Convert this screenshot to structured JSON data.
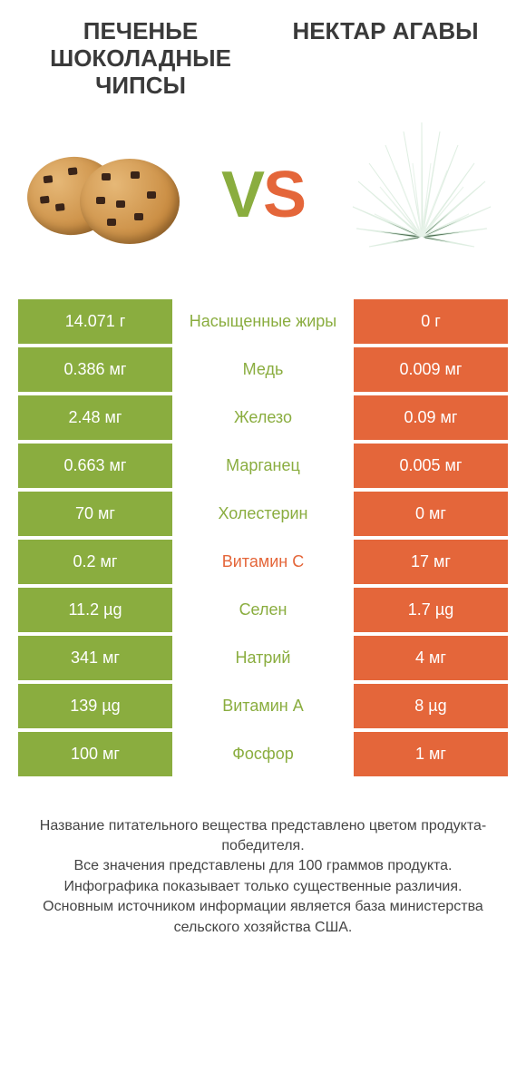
{
  "colors": {
    "left_cell": "#8aad3f",
    "right_cell": "#e4663a",
    "left_text": "#8aad3f",
    "right_text": "#e4663a",
    "background": "#ffffff"
  },
  "header": {
    "left_title": "ПЕЧЕНЬЕ ШОКОЛАДНЫЕ ЧИПСЫ",
    "right_title": "НЕКТАР АГАВЫ"
  },
  "vs": {
    "v": "V",
    "s": "S"
  },
  "rows": [
    {
      "left": "14.071 г",
      "label": "Насыщенные жиры",
      "right": "0 г",
      "winner": "left"
    },
    {
      "left": "0.386 мг",
      "label": "Медь",
      "right": "0.009 мг",
      "winner": "left"
    },
    {
      "left": "2.48 мг",
      "label": "Железо",
      "right": "0.09 мг",
      "winner": "left"
    },
    {
      "left": "0.663 мг",
      "label": "Марганец",
      "right": "0.005 мг",
      "winner": "left"
    },
    {
      "left": "70 мг",
      "label": "Холестерин",
      "right": "0 мг",
      "winner": "left"
    },
    {
      "left": "0.2 мг",
      "label": "Витамин C",
      "right": "17 мг",
      "winner": "right"
    },
    {
      "left": "11.2 µg",
      "label": "Селен",
      "right": "1.7 µg",
      "winner": "left"
    },
    {
      "left": "341 мг",
      "label": "Натрий",
      "right": "4 мг",
      "winner": "left"
    },
    {
      "left": "139 µg",
      "label": "Витамин A",
      "right": "8 µg",
      "winner": "left"
    },
    {
      "left": "100 мг",
      "label": "Фосфор",
      "right": "1 мг",
      "winner": "left"
    }
  ],
  "footer": {
    "line1": "Название питательного вещества представлено цветом продукта-победителя.",
    "line2": "Все значения представлены для 100 граммов продукта.",
    "line3": "Инфографика показывает только существенные различия.",
    "line4": "Основным источником информации является база министерства сельского хозяйства США."
  }
}
